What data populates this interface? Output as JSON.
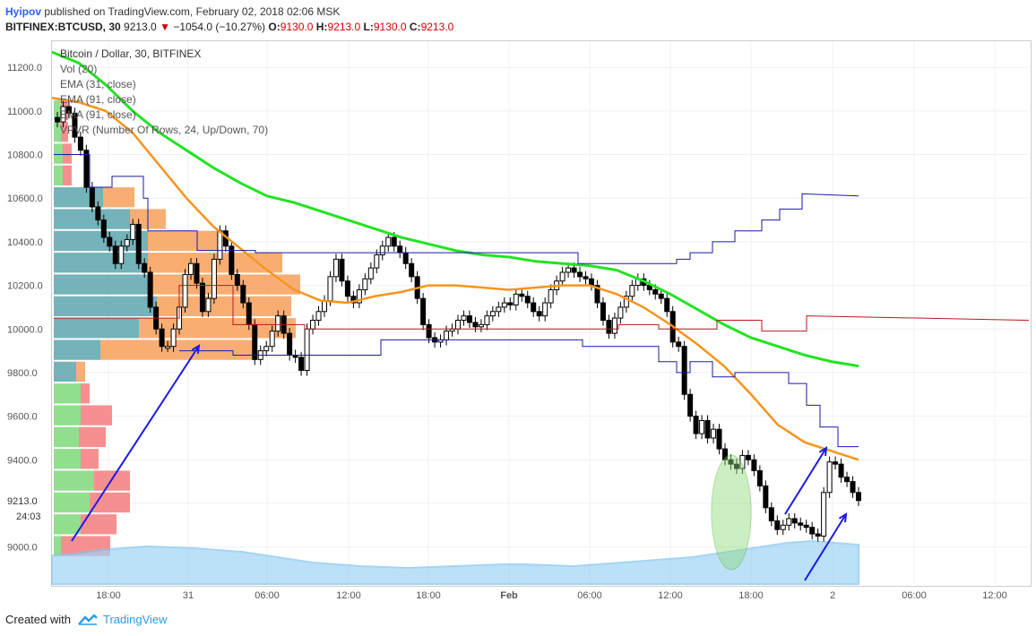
{
  "header": {
    "publisher": "Hyipov",
    "published_text": "published on TradingView.com, February 02, 2018 02:06 MSK"
  },
  "symbol_line": {
    "symbol": "BITFINEX:BTCUSD, 30",
    "last": "9213.0",
    "change_arrow": "▼",
    "change": "−1054.0 (−10.27%)",
    "o_label": "O:",
    "o": "9130.0",
    "h_label": "H:",
    "h": "9213.0",
    "l_label": "L:",
    "l": "9130.0",
    "c_label": "C:",
    "c": "9213.0"
  },
  "legend": [
    "Bitcoin / Dollar, 30, BITFINEX",
    "Vol (20)",
    "EMA (31, close)",
    "EMA (91, close)",
    "EMA (91, close)",
    "VPVR (Number Of Rows, 24, Up/Down, 70)"
  ],
  "footer": {
    "created_with": "Created with",
    "brand": "TradingView"
  },
  "colors": {
    "up_candle": "#ffffff",
    "down_candle": "#000000",
    "ema31": "#f7941d",
    "ema91_green": "#22e322",
    "channel_blue": "#1a1aa8",
    "channel_red": "#b8191b",
    "vol_area": "#9fd3f5",
    "vp_up": "#7ed97a",
    "vp_down": "#f47c7c",
    "vp_va_up": "#5ba6ad",
    "vp_va_down": "#f7a05a",
    "arrow": "#1a1ae6",
    "ellipse": "#8edb7a"
  },
  "chart_data": {
    "type": "candlestick",
    "title": "Bitcoin / Dollar, 30, BITFINEX",
    "price_axis": {
      "ticks": [
        9000,
        9200,
        9400,
        9600,
        9800,
        10000,
        10200,
        10400,
        10600,
        10800,
        11000,
        11200
      ],
      "tick_labels": [
        "9000.0",
        "9400.0",
        "9600.0",
        "9800.0",
        "10000.0",
        "10200.0",
        "10400.0",
        "10600.0",
        "10800.0",
        "11000.0",
        "11200.0"
      ],
      "last_price_label": "9213.0",
      "countdown_label": "24:03",
      "range": [
        8830,
        11320
      ]
    },
    "time_axis": {
      "labels": [
        "18:00",
        "31",
        "06:00",
        "12:00",
        "18:00",
        "Feb",
        "06:00",
        "12:00",
        "18:00",
        "2",
        "06:00",
        "12:00"
      ]
    },
    "candles_close": [
      10950,
      11020,
      10990,
      10880,
      10820,
      10650,
      10560,
      10500,
      10420,
      10380,
      10300,
      10380,
      10410,
      10480,
      10300,
      10260,
      10100,
      10000,
      9920,
      9920,
      10000,
      10100,
      10250,
      10300,
      10210,
      10080,
      10140,
      10320,
      10450,
      10380,
      10250,
      10200,
      10120,
      10020,
      9860,
      9900,
      9920,
      9990,
      10060,
      9980,
      9880,
      9870,
      9810,
      10000,
      10040,
      10080,
      10130,
      10240,
      10320,
      10220,
      10150,
      10120,
      10180,
      10230,
      10280,
      10340,
      10380,
      10420,
      10380,
      10350,
      10300,
      10240,
      10140,
      10020,
      9960,
      9940,
      9950,
      9990,
      10000,
      10040,
      10060,
      10030,
      10010,
      10020,
      10060,
      10080,
      10100,
      10120,
      10110,
      10160,
      10150,
      10120,
      10080,
      10060,
      10120,
      10180,
      10220,
      10260,
      10280,
      10260,
      10240,
      10230,
      10200,
      10120,
      10040,
      9980,
      10050,
      10100,
      10150,
      10200,
      10230,
      10200,
      10180,
      10160,
      10140,
      10080,
      9940,
      9920,
      9700,
      9600,
      9520,
      9580,
      9500,
      9540,
      9450,
      9400,
      9380,
      9360,
      9420,
      9400,
      9350,
      9280,
      9180,
      9120,
      9080,
      9100,
      9130,
      9110,
      9100,
      9090,
      9060,
      9050,
      9250,
      9390,
      9380,
      9320,
      9300,
      9250,
      9213
    ],
    "ema31": [
      11060,
      11040,
      11000,
      10900,
      10750,
      10600,
      10470,
      10370,
      10270,
      10180,
      10130,
      10120,
      10150,
      10170,
      10200,
      10200,
      10190,
      10180,
      10190,
      10200,
      10200,
      10160,
      10100,
      10020,
      9930,
      9830,
      9700,
      9560,
      9480,
      9440,
      9400
    ],
    "ema91_green": [
      11270,
      11220,
      11120,
      11000,
      10900,
      10820,
      10740,
      10670,
      10610,
      10580,
      10540,
      10500,
      10460,
      10420,
      10390,
      10360,
      10340,
      10330,
      10310,
      10300,
      10290,
      10270,
      10220,
      10160,
      10090,
      10020,
      9960,
      9920,
      9880,
      9850,
      9830
    ],
    "annotations": [
      "blue up-arrow",
      "blue up-arrow",
      "blue up-arrow",
      "green highlight ellipse"
    ]
  }
}
